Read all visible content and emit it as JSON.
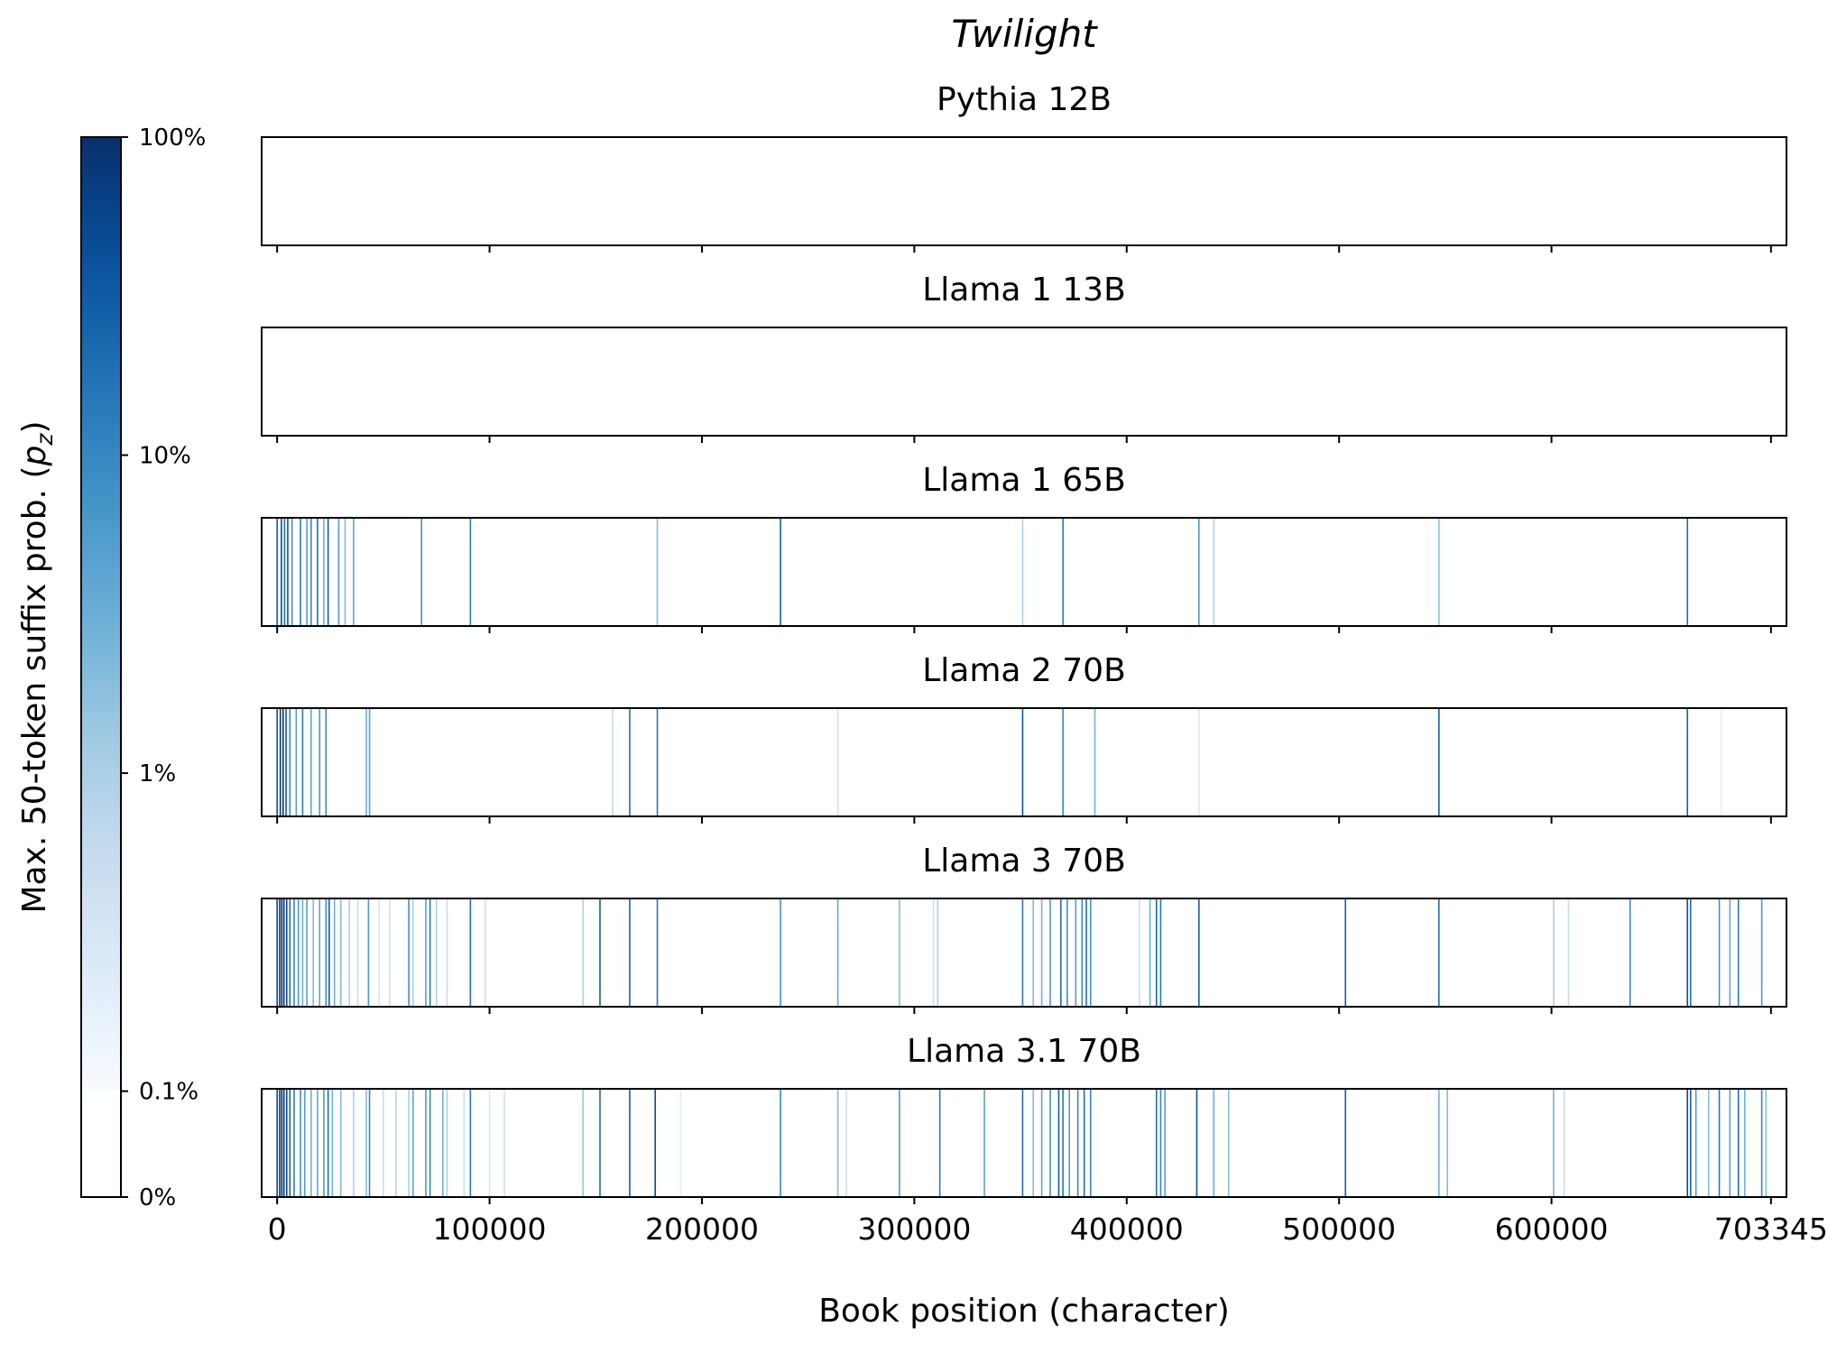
{
  "chart_data": {
    "type": "heatmap",
    "title": "Twilight",
    "xlabel": "Book position (character)",
    "xlim": [
      0,
      703345
    ],
    "x_ticks": [
      "0",
      "100000",
      "200000",
      "300000",
      "400000",
      "500000",
      "600000",
      "703345"
    ],
    "x_tick_values": [
      0,
      100000,
      200000,
      300000,
      400000,
      500000,
      600000,
      703345
    ],
    "colorbar": {
      "label_prefix": "Max. 50-token suffix prob. (",
      "label_symbol": "p",
      "label_subscript": "z",
      "label_suffix": ")",
      "colormap": "Blues",
      "scale": "log",
      "ticks": [
        "100%",
        "10%",
        "1%",
        "0.1%",
        "0%"
      ],
      "tick_values": [
        1.0,
        0.1,
        0.01,
        0.001,
        0.0
      ]
    },
    "series": [
      {
        "name": "Pythia 12B",
        "stripes": []
      },
      {
        "name": "Llama 1 13B",
        "stripes": []
      },
      {
        "name": "Llama 1 65B",
        "stripes": [
          [
            0,
            0.3
          ],
          [
            2000,
            0.5
          ],
          [
            3500,
            0.2
          ],
          [
            5000,
            0.4
          ],
          [
            7000,
            0.08
          ],
          [
            11000,
            0.15
          ],
          [
            14000,
            0.05
          ],
          [
            16000,
            0.1
          ],
          [
            19000,
            0.2
          ],
          [
            22000,
            0.03
          ],
          [
            24000,
            0.3
          ],
          [
            29000,
            0.06
          ],
          [
            32000,
            0.02
          ],
          [
            36000,
            0.04
          ],
          [
            68000,
            0.08
          ],
          [
            91000,
            0.15
          ],
          [
            179000,
            0.02
          ],
          [
            237000,
            0.3
          ],
          [
            351000,
            0.01
          ],
          [
            370000,
            0.15
          ],
          [
            434000,
            0.06
          ],
          [
            441000,
            0.01
          ],
          [
            547000,
            0.02
          ],
          [
            664000,
            0.2
          ]
        ]
      },
      {
        "name": "Llama 2 70B",
        "stripes": [
          [
            0,
            0.4
          ],
          [
            1500,
            0.9
          ],
          [
            2800,
            1.0
          ],
          [
            4200,
            0.3
          ],
          [
            6000,
            0.1
          ],
          [
            9000,
            0.05
          ],
          [
            12000,
            0.15
          ],
          [
            16000,
            0.04
          ],
          [
            20000,
            0.06
          ],
          [
            23000,
            0.1
          ],
          [
            42000,
            0.03
          ],
          [
            43500,
            0.05
          ],
          [
            158000,
            0.006
          ],
          [
            166000,
            0.2
          ],
          [
            179000,
            0.15
          ],
          [
            264000,
            0.004
          ],
          [
            351000,
            0.4
          ],
          [
            370000,
            0.1
          ],
          [
            385000,
            0.03
          ],
          [
            434000,
            0.003
          ],
          [
            547000,
            0.3
          ],
          [
            664000,
            0.25
          ],
          [
            680000,
            0.002
          ]
        ]
      },
      {
        "name": "Llama 3 70B",
        "stripes": [
          [
            0,
            0.5
          ],
          [
            1200,
            0.9
          ],
          [
            2200,
            1.0
          ],
          [
            3200,
            0.8
          ],
          [
            4500,
            0.5
          ],
          [
            6000,
            0.2
          ],
          [
            8000,
            0.1
          ],
          [
            10000,
            0.06
          ],
          [
            12000,
            0.03
          ],
          [
            14000,
            0.05
          ],
          [
            17000,
            0.02
          ],
          [
            20000,
            0.04
          ],
          [
            23000,
            0.08
          ],
          [
            24500,
            0.3
          ],
          [
            27000,
            0.03
          ],
          [
            30000,
            0.02
          ],
          [
            34000,
            0.01
          ],
          [
            38000,
            0.005
          ],
          [
            43000,
            0.06
          ],
          [
            48000,
            0.003
          ],
          [
            53000,
            0.004
          ],
          [
            62000,
            0.08
          ],
          [
            64000,
            0.01
          ],
          [
            70000,
            0.05
          ],
          [
            72000,
            0.15
          ],
          [
            75000,
            0.01
          ],
          [
            80000,
            0.006
          ],
          [
            91000,
            0.2
          ],
          [
            98000,
            0.004
          ],
          [
            144000,
            0.01
          ],
          [
            152000,
            0.3
          ],
          [
            166000,
            0.25
          ],
          [
            179000,
            0.15
          ],
          [
            237000,
            0.08
          ],
          [
            264000,
            0.04
          ],
          [
            293000,
            0.02
          ],
          [
            309000,
            0.005
          ],
          [
            311000,
            0.01
          ],
          [
            351000,
            0.15
          ],
          [
            356000,
            0.02
          ],
          [
            360000,
            0.03
          ],
          [
            364000,
            0.06
          ],
          [
            369000,
            0.2
          ],
          [
            372000,
            0.08
          ],
          [
            376000,
            0.05
          ],
          [
            379000,
            0.1
          ],
          [
            381000,
            0.2
          ],
          [
            383000,
            0.08
          ],
          [
            406000,
            0.005
          ],
          [
            411000,
            0.03
          ],
          [
            414000,
            0.25
          ],
          [
            416000,
            0.15
          ],
          [
            434000,
            0.3
          ],
          [
            503000,
            0.3
          ],
          [
            547000,
            0.2
          ],
          [
            601000,
            0.01
          ],
          [
            608000,
            0.005
          ],
          [
            637000,
            0.1
          ],
          [
            664000,
            0.4
          ],
          [
            665500,
            0.2
          ],
          [
            679000,
            0.08
          ],
          [
            684000,
            0.04
          ],
          [
            688000,
            0.15
          ],
          [
            699000,
            0.06
          ]
        ]
      },
      {
        "name": "Llama 3.1 70B",
        "stripes": [
          [
            0,
            0.5
          ],
          [
            1200,
            0.9
          ],
          [
            2200,
            1.0
          ],
          [
            3200,
            0.8
          ],
          [
            4500,
            0.5
          ],
          [
            6000,
            0.25
          ],
          [
            8000,
            0.12
          ],
          [
            11000,
            0.08
          ],
          [
            13000,
            0.05
          ],
          [
            16000,
            0.03
          ],
          [
            19000,
            0.04
          ],
          [
            22000,
            0.06
          ],
          [
            24000,
            0.2
          ],
          [
            26000,
            0.03
          ],
          [
            30000,
            0.02
          ],
          [
            36000,
            0.01
          ],
          [
            42000,
            0.02
          ],
          [
            43500,
            0.1
          ],
          [
            50000,
            0.005
          ],
          [
            56000,
            0.008
          ],
          [
            62000,
            0.01
          ],
          [
            64000,
            0.04
          ],
          [
            70000,
            0.06
          ],
          [
            72000,
            0.1
          ],
          [
            78000,
            0.03
          ],
          [
            80000,
            0.01
          ],
          [
            88000,
            0.005
          ],
          [
            91000,
            0.15
          ],
          [
            100000,
            0.003
          ],
          [
            107000,
            0.004
          ],
          [
            144000,
            0.015
          ],
          [
            152000,
            0.2
          ],
          [
            166000,
            0.3
          ],
          [
            178000,
            0.5
          ],
          [
            190000,
            0.002
          ],
          [
            237000,
            0.1
          ],
          [
            264000,
            0.02
          ],
          [
            268000,
            0.004
          ],
          [
            293000,
            0.06
          ],
          [
            312000,
            0.15
          ],
          [
            333000,
            0.05
          ],
          [
            351000,
            0.2
          ],
          [
            356000,
            0.02
          ],
          [
            360000,
            0.04
          ],
          [
            364000,
            0.08
          ],
          [
            368000,
            0.3
          ],
          [
            370000,
            0.15
          ],
          [
            373000,
            0.06
          ],
          [
            377000,
            0.1
          ],
          [
            380000,
            0.2
          ],
          [
            383000,
            0.1
          ],
          [
            414000,
            0.2
          ],
          [
            416000,
            0.1
          ],
          [
            418000,
            0.05
          ],
          [
            433000,
            0.4
          ],
          [
            441000,
            0.03
          ],
          [
            448000,
            0.02
          ],
          [
            503000,
            0.3
          ],
          [
            547000,
            0.03
          ],
          [
            551000,
            0.02
          ],
          [
            601000,
            0.03
          ],
          [
            606000,
            0.005
          ],
          [
            664000,
            0.5
          ],
          [
            665500,
            0.3
          ],
          [
            668000,
            0.06
          ],
          [
            674000,
            0.02
          ],
          [
            679000,
            0.15
          ],
          [
            684000,
            0.05
          ],
          [
            688000,
            0.2
          ],
          [
            691000,
            0.03
          ],
          [
            699000,
            0.1
          ],
          [
            701000,
            0.02
          ]
        ]
      }
    ]
  }
}
